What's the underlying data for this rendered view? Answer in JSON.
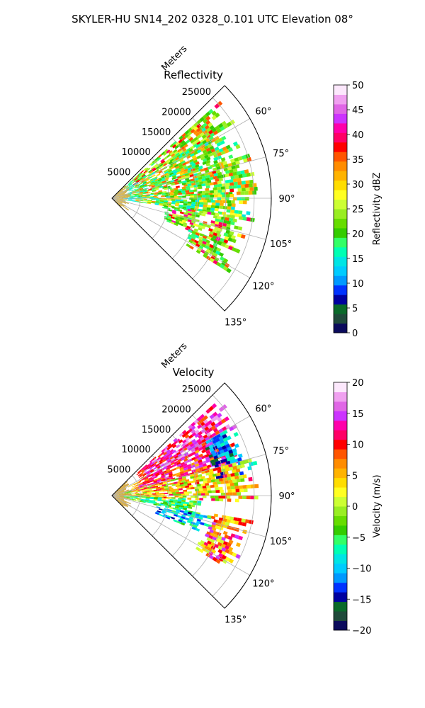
{
  "figure": {
    "title": "SKYLER-HU  SN14_202  0328_0.101 UTC Elevation 08°"
  },
  "chart_data": [
    {
      "type": "heatmap",
      "subtype": "polar-sector (radar PPI)",
      "title": "Reflectivity",
      "radial_axis_label": "Meters",
      "radial_ticks": [
        5000,
        10000,
        15000,
        20000,
        25000
      ],
      "radial_tick_labels": [
        "5000",
        "10000",
        "15000",
        "20000",
        "25000"
      ],
      "radial_range": [
        0,
        28000
      ],
      "azimuth_range_deg": [
        45,
        135
      ],
      "azimuth_ticks": [
        "60°",
        "75°",
        "90°",
        "105°",
        "120°",
        "135°"
      ],
      "grid": true,
      "colorbar": {
        "label": "Reflectivity dBZ",
        "range": [
          0,
          50
        ],
        "ticks": [
          "0",
          "5",
          "10",
          "15",
          "20",
          "25",
          "30",
          "35",
          "40",
          "45",
          "50"
        ],
        "colormap": [
          "#0b0b5c",
          "#1f4a3a",
          "#0a6a2a",
          "#0000a0",
          "#0033ff",
          "#0099ff",
          "#00ccff",
          "#00e5e5",
          "#00ffb3",
          "#33ff66",
          "#33cc00",
          "#66dd00",
          "#99ee22",
          "#ccff33",
          "#ffff22",
          "#ffdd00",
          "#ffb300",
          "#ff8c00",
          "#ff5500",
          "#ff0000",
          "#ff0066",
          "#ff00aa",
          "#cc33ff",
          "#e066e6",
          "#f0a0f0",
          "#fce8fc"
        ]
      },
      "echoes": [
        {
          "az_start": 48,
          "az_end": 58,
          "r_start": 2500,
          "r_end": 25500,
          "mean": 22,
          "core": 36
        },
        {
          "az_start": 58,
          "az_end": 72,
          "r_start": 2500,
          "r_end": 24000,
          "mean": 20,
          "core": 33
        },
        {
          "az_start": 72,
          "az_end": 88,
          "r_start": 1500,
          "r_end": 26000,
          "mean": 21,
          "core": 34
        },
        {
          "az_start": 88,
          "az_end": 98,
          "r_start": 2000,
          "r_end": 25000,
          "mean": 19,
          "core": 30
        },
        {
          "az_start": 98,
          "az_end": 112,
          "r_start": 9000,
          "r_end": 25000,
          "mean": 23,
          "core": 38
        },
        {
          "az_start": 112,
          "az_end": 122,
          "r_start": 14000,
          "r_end": 24500,
          "mean": 22,
          "core": 37
        }
      ]
    },
    {
      "type": "heatmap",
      "subtype": "polar-sector (radar PPI)",
      "title": "Velocity",
      "radial_axis_label": "Meters",
      "radial_ticks": [
        5000,
        10000,
        15000,
        20000,
        25000
      ],
      "radial_tick_labels": [
        "5000",
        "10000",
        "15000",
        "20000",
        "25000"
      ],
      "radial_range": [
        0,
        28000
      ],
      "azimuth_range_deg": [
        45,
        135
      ],
      "azimuth_ticks": [
        "60°",
        "75°",
        "90°",
        "105°",
        "120°",
        "135°"
      ],
      "grid": true,
      "colorbar": {
        "label": "Velocity (m/s)",
        "range": [
          -20,
          20
        ],
        "ticks": [
          "−20",
          "−15",
          "−10",
          "−5",
          "0",
          "5",
          "10",
          "15",
          "20"
        ],
        "colormap": [
          "#0b0b5c",
          "#1f4a3a",
          "#0a6a2a",
          "#0000a0",
          "#0033ff",
          "#0099ff",
          "#00ccff",
          "#00e5e5",
          "#00ffb3",
          "#33ff66",
          "#33cc00",
          "#66dd00",
          "#99ee22",
          "#ccff33",
          "#ffff22",
          "#ffdd00",
          "#ffb300",
          "#ff8c00",
          "#ff5500",
          "#ff0000",
          "#ff0066",
          "#ff00aa",
          "#cc33ff",
          "#e066e6",
          "#f0a0f0",
          "#fce8fc"
        ]
      },
      "echoes": [
        {
          "az_start": 48,
          "az_end": 62,
          "r_start": 5000,
          "r_end": 25500,
          "mean": 13,
          "core": 16
        },
        {
          "az_start": 62,
          "az_end": 75,
          "r_start": 3000,
          "r_end": 24000,
          "mean": 10,
          "core": 14
        },
        {
          "az_start": 60,
          "az_end": 80,
          "r_start": 18000,
          "r_end": 26000,
          "mean": -11,
          "core": -12
        },
        {
          "az_start": 75,
          "az_end": 92,
          "r_start": 1000,
          "r_end": 26000,
          "mean": 2,
          "core": 9
        },
        {
          "az_start": 92,
          "az_end": 102,
          "r_start": 1000,
          "r_end": 16000,
          "mean": -3,
          "core": -6
        },
        {
          "az_start": 102,
          "az_end": 112,
          "r_start": 8000,
          "r_end": 18000,
          "mean": -9,
          "core": -11
        },
        {
          "az_start": 100,
          "az_end": 122,
          "r_start": 17000,
          "r_end": 25000,
          "mean": 5,
          "core": 12
        }
      ]
    }
  ]
}
